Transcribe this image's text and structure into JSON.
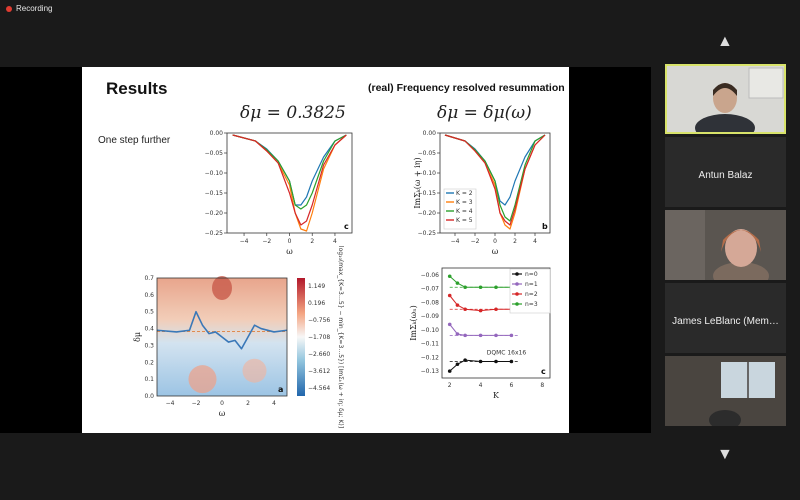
{
  "recording": {
    "label": "Recording"
  },
  "slide": {
    "title": "Results",
    "subtitle": "(real) Frequency resolved resummation",
    "eq_left": "δμ = 0.3825",
    "eq_right": "δμ = δμ(ω)",
    "side_note": "One step further"
  },
  "participants": [
    {
      "name": "",
      "active": true
    },
    {
      "name": "Antun Balaz",
      "active": false
    },
    {
      "name": "",
      "active": false
    },
    {
      "name": "James LeBlanc (Mem…",
      "active": false
    },
    {
      "name": "",
      "active": false
    }
  ],
  "controls": {
    "up": "▲",
    "down": "▼"
  },
  "colors": {
    "c_blue": "#1f77b4",
    "c_orange": "#ff7f0e",
    "c_green": "#2ca02c",
    "c_red": "#d62728",
    "c_purple": "#9467bd"
  },
  "chart_data": [
    {
      "panel": "c",
      "type": "line",
      "x": [
        -5,
        -3,
        -2,
        -1,
        0,
        0.5,
        1,
        1.5,
        2,
        3,
        4,
        5
      ],
      "series": [
        {
          "values": [
            -0.005,
            -0.02,
            -0.04,
            -0.07,
            -0.12,
            -0.18,
            -0.18,
            -0.16,
            -0.12,
            -0.06,
            -0.02,
            -0.005
          ]
        },
        {
          "values": [
            -0.005,
            -0.02,
            -0.045,
            -0.075,
            -0.13,
            -0.2,
            -0.24,
            -0.245,
            -0.2,
            -0.09,
            -0.03,
            -0.005
          ]
        },
        {
          "values": [
            -0.005,
            -0.02,
            -0.042,
            -0.07,
            -0.12,
            -0.18,
            -0.19,
            -0.18,
            -0.15,
            -0.07,
            -0.02,
            -0.005
          ]
        },
        {
          "values": [
            -0.005,
            -0.02,
            -0.045,
            -0.075,
            -0.15,
            -0.2,
            -0.23,
            -0.22,
            -0.18,
            -0.08,
            -0.03,
            -0.005
          ]
        }
      ],
      "xlabel": "ω",
      "ylabel": "",
      "xticks": [
        -4,
        -2,
        0,
        2,
        4
      ],
      "yticks": [
        0.0,
        -0.05,
        -0.1,
        -0.15,
        -0.2,
        -0.25
      ],
      "ylim": [
        -0.25,
        0.0
      ],
      "ytick_labels": [
        "0.00",
        "−0.05",
        "−0.10",
        "−0.15",
        "−0.20",
        "−0.25"
      ],
      "xtick_labels": [
        "−4",
        "−2",
        "0",
        "2",
        "4"
      ]
    },
    {
      "panel": "b",
      "type": "line",
      "x": [
        -5,
        -3,
        -2,
        -1,
        0,
        0.5,
        1,
        1.5,
        2,
        3,
        4,
        5
      ],
      "series": [
        {
          "name": "K = 2",
          "values": [
            -0.005,
            -0.02,
            -0.04,
            -0.07,
            -0.12,
            -0.17,
            -0.18,
            -0.16,
            -0.12,
            -0.06,
            -0.02,
            -0.005
          ]
        },
        {
          "name": "K = 3",
          "values": [
            -0.005,
            -0.02,
            -0.045,
            -0.075,
            -0.13,
            -0.2,
            -0.23,
            -0.24,
            -0.2,
            -0.09,
            -0.03,
            -0.005
          ]
        },
        {
          "name": "K = 4",
          "values": [
            -0.005,
            -0.02,
            -0.042,
            -0.07,
            -0.12,
            -0.18,
            -0.21,
            -0.22,
            -0.18,
            -0.08,
            -0.02,
            -0.005
          ]
        },
        {
          "name": "K = 5",
          "values": [
            -0.005,
            -0.02,
            -0.045,
            -0.075,
            -0.14,
            -0.2,
            -0.22,
            -0.23,
            -0.19,
            -0.09,
            -0.03,
            -0.005
          ]
        }
      ],
      "xlabel": "ω",
      "ylabel": "ImΣₖ(ω + iη)",
      "ylim": [
        -0.25,
        0.0
      ],
      "ytick_labels": [
        "0.00",
        "−0.05",
        "−0.10",
        "−0.15",
        "−0.20",
        "−0.25"
      ],
      "xtick_labels": [
        "−4",
        "−2",
        "0",
        "2",
        "4"
      ]
    },
    {
      "panel": "a",
      "type": "heatmap",
      "xlabel": "ω",
      "ylabel": "δμ",
      "ylim": [
        0.0,
        0.7
      ],
      "xtick_labels": [
        "−4",
        "−2",
        "0",
        "2",
        "4"
      ],
      "ytick_labels": [
        "0.0",
        "0.1",
        "0.2",
        "0.3",
        "0.4",
        "0.5",
        "0.6",
        "0.7"
      ],
      "colorbar_ticks": [
        "1.149",
        "0.196",
        "−0.756",
        "−1.708",
        "−2.660",
        "−3.612",
        "−4.564"
      ],
      "colorbar_label": "log₁₀(max_{K=3…5} − min_{K=3…5}) [ImΣₖ(ω + iη; δμ; K)]",
      "curve_x": [
        -5,
        -3.5,
        -2.5,
        -2,
        -1.5,
        -1,
        -0.5,
        0,
        0.5,
        1,
        1.5,
        2,
        2.5,
        3,
        4,
        5
      ],
      "curve_y": [
        0.39,
        0.38,
        0.39,
        0.5,
        0.42,
        0.37,
        0.38,
        0.35,
        0.32,
        0.33,
        0.28,
        0.35,
        0.42,
        0.4,
        0.38,
        0.39
      ],
      "reference_y": 0.3825
    },
    {
      "panel": "c",
      "type": "scatter",
      "x": [
        2,
        2.5,
        3,
        4,
        5,
        6
      ],
      "series": [
        {
          "name": "n=0",
          "values": [
            -0.13,
            -0.125,
            -0.122,
            -0.123,
            -0.123,
            -0.123
          ]
        },
        {
          "name": "n=1",
          "values": [
            -0.096,
            -0.103,
            -0.104,
            -0.104,
            -0.104,
            -0.104
          ]
        },
        {
          "name": "n=2",
          "values": [
            -0.075,
            -0.082,
            -0.085,
            -0.086,
            -0.085,
            -0.085
          ]
        },
        {
          "name": "n=3",
          "values": [
            -0.061,
            -0.066,
            -0.069,
            -0.069,
            -0.069,
            -0.069
          ]
        }
      ],
      "xlabel": "K",
      "ylabel": "ImΣₖ(ωₙ)",
      "ylim": [
        -0.135,
        -0.055
      ],
      "annotation": "DQMC 16x16",
      "xtick_labels": [
        "2",
        "4",
        "6",
        "8"
      ],
      "ytick_labels": [
        "−0.06",
        "−0.07",
        "−0.08",
        "−0.09",
        "−0.10",
        "−0.11",
        "−0.12",
        "−0.13"
      ]
    }
  ]
}
